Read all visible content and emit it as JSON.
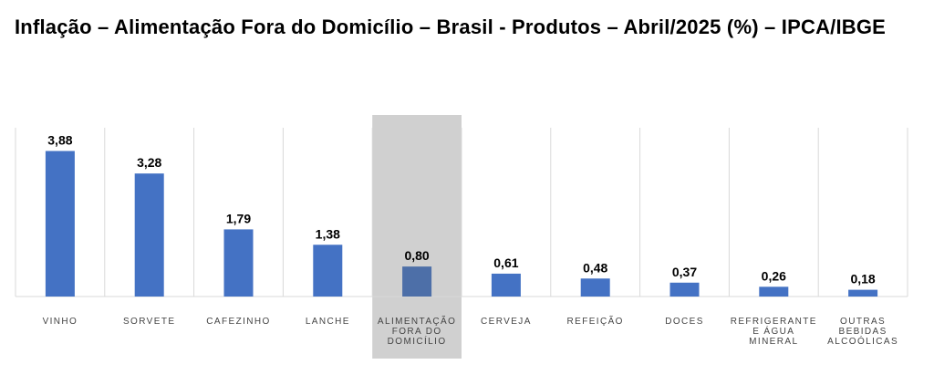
{
  "title": "Inflação – Alimentação Fora do Domicílio – Brasil - Produtos – Abril/2025 (%) – IPCA/IBGE",
  "colors": {
    "bar": "#4472c4",
    "highlight_bar": "#4d6fa8",
    "highlight_band": "#d0d0d0",
    "grid": "#d9d9d9"
  },
  "chart_data": {
    "type": "bar",
    "highlight_index": 4,
    "categories": [
      [
        "VINHO"
      ],
      [
        "SORVETE"
      ],
      [
        "CAFEZINHO"
      ],
      [
        "LANCHE"
      ],
      [
        "ALIMENTAÇÃO",
        "FORA DO",
        "DOMICÍLIO"
      ],
      [
        "CERVEJA"
      ],
      [
        "REFEIÇÃO"
      ],
      [
        "DOCES"
      ],
      [
        "REFRIGERANTE",
        "E ÁGUA",
        "MINERAL"
      ],
      [
        "OUTRAS",
        "BEBIDAS",
        "ALCOÓLICAS"
      ]
    ],
    "values": [
      3.88,
      3.28,
      1.79,
      1.38,
      0.8,
      0.61,
      0.48,
      0.37,
      0.26,
      0.18
    ],
    "value_labels": [
      "3,88",
      "3,28",
      "1,79",
      "1,38",
      "0,80",
      "0,61",
      "0,48",
      "0,37",
      "0,26",
      "0,18"
    ],
    "ylim": [
      0,
      4.5
    ],
    "grid": "vertical separators",
    "legend": "none"
  }
}
